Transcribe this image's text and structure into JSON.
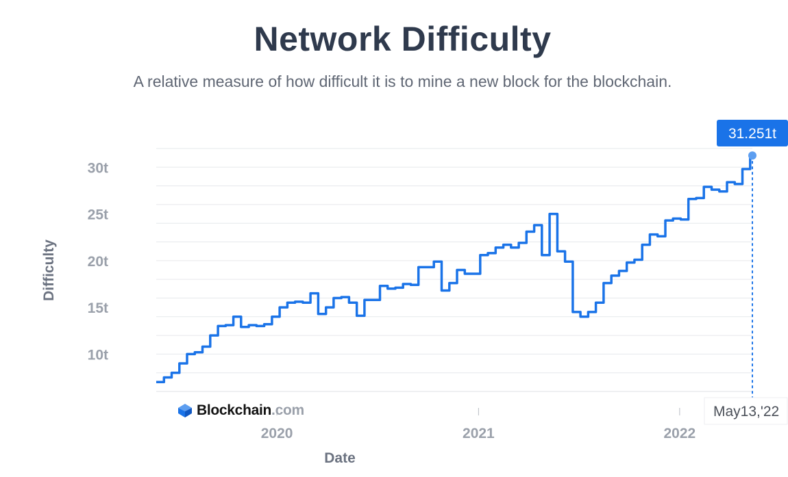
{
  "header": {
    "title": "Network Difficulty",
    "subtitle": "A relative measure of how difficult it is to mine a new block for the blockchain."
  },
  "brand": {
    "name": "Blockchain",
    "suffix": ".com",
    "icon": "blockchain-cube-icon",
    "color": "#2f7ef5"
  },
  "tooltip": {
    "value": "31.251t",
    "date": "May13,'22"
  },
  "colors": {
    "line": "#1a73e8",
    "tooltip_bg": "#1a73e8",
    "axis_text": "#9aa0aa",
    "grid": "#e6e8eb"
  },
  "chart_data": {
    "type": "line",
    "title": "Network Difficulty",
    "xlabel": "Date",
    "ylabel": "Difficulty",
    "x_ticks": [
      "2020",
      "2021",
      "2022"
    ],
    "y_ticks": [
      "10t",
      "15t",
      "20t",
      "25t",
      "30t"
    ],
    "ylim": [
      6,
      32
    ],
    "grid": true,
    "series": [
      {
        "values": [
          [
            "2019-05-27",
            7.0
          ],
          [
            "2019-06-10",
            7.5
          ],
          [
            "2019-06-24",
            8.0
          ],
          [
            "2019-07-08",
            9.0
          ],
          [
            "2019-07-22",
            10.0
          ],
          [
            "2019-08-05",
            10.2
          ],
          [
            "2019-08-19",
            10.8
          ],
          [
            "2019-09-02",
            12.0
          ],
          [
            "2019-09-16",
            13.0
          ],
          [
            "2019-09-30",
            13.1
          ],
          [
            "2019-10-14",
            14.0
          ],
          [
            "2019-10-28",
            12.9
          ],
          [
            "2019-11-11",
            13.1
          ],
          [
            "2019-11-25",
            13.0
          ],
          [
            "2019-12-09",
            13.2
          ],
          [
            "2019-12-23",
            14.0
          ],
          [
            "2020-01-06",
            15.0
          ],
          [
            "2020-01-20",
            15.5
          ],
          [
            "2020-02-03",
            15.6
          ],
          [
            "2020-02-17",
            15.5
          ],
          [
            "2020-03-02",
            16.5
          ],
          [
            "2020-03-16",
            14.3
          ],
          [
            "2020-03-30",
            15.0
          ],
          [
            "2020-04-13",
            16.0
          ],
          [
            "2020-04-27",
            16.1
          ],
          [
            "2020-05-11",
            15.5
          ],
          [
            "2020-05-25",
            14.1
          ],
          [
            "2020-06-08",
            15.8
          ],
          [
            "2020-06-22",
            15.8
          ],
          [
            "2020-07-06",
            17.3
          ],
          [
            "2020-07-20",
            17.0
          ],
          [
            "2020-08-03",
            17.1
          ],
          [
            "2020-08-17",
            17.5
          ],
          [
            "2020-08-31",
            17.4
          ],
          [
            "2020-09-14",
            19.3
          ],
          [
            "2020-09-28",
            19.3
          ],
          [
            "2020-10-12",
            19.9
          ],
          [
            "2020-10-26",
            16.8
          ],
          [
            "2020-11-09",
            17.6
          ],
          [
            "2020-11-23",
            19.0
          ],
          [
            "2020-12-07",
            18.6
          ],
          [
            "2020-12-21",
            18.6
          ],
          [
            "2021-01-04",
            20.6
          ],
          [
            "2021-01-18",
            20.8
          ],
          [
            "2021-02-01",
            21.4
          ],
          [
            "2021-02-15",
            21.7
          ],
          [
            "2021-03-01",
            21.4
          ],
          [
            "2021-03-15",
            21.9
          ],
          [
            "2021-03-29",
            23.1
          ],
          [
            "2021-04-12",
            23.8
          ],
          [
            "2021-04-26",
            20.6
          ],
          [
            "2021-05-10",
            25.0
          ],
          [
            "2021-05-24",
            21.0
          ],
          [
            "2021-06-07",
            19.9
          ],
          [
            "2021-06-21",
            14.5
          ],
          [
            "2021-07-05",
            14.0
          ],
          [
            "2021-07-19",
            14.5
          ],
          [
            "2021-08-02",
            15.5
          ],
          [
            "2021-08-16",
            17.6
          ],
          [
            "2021-08-30",
            18.4
          ],
          [
            "2021-09-13",
            18.9
          ],
          [
            "2021-09-27",
            19.8
          ],
          [
            "2021-10-11",
            20.1
          ],
          [
            "2021-10-25",
            21.7
          ],
          [
            "2021-11-08",
            22.8
          ],
          [
            "2021-11-22",
            22.6
          ],
          [
            "2021-12-06",
            24.3
          ],
          [
            "2021-12-20",
            24.5
          ],
          [
            "2022-01-03",
            24.4
          ],
          [
            "2022-01-17",
            26.6
          ],
          [
            "2022-01-31",
            26.7
          ],
          [
            "2022-02-14",
            27.9
          ],
          [
            "2022-02-28",
            27.6
          ],
          [
            "2022-03-14",
            27.4
          ],
          [
            "2022-03-28",
            28.4
          ],
          [
            "2022-04-11",
            28.2
          ],
          [
            "2022-04-25",
            29.8
          ],
          [
            "2022-05-09",
            31.251
          ],
          [
            "2022-05-13",
            31.251
          ]
        ]
      }
    ]
  }
}
